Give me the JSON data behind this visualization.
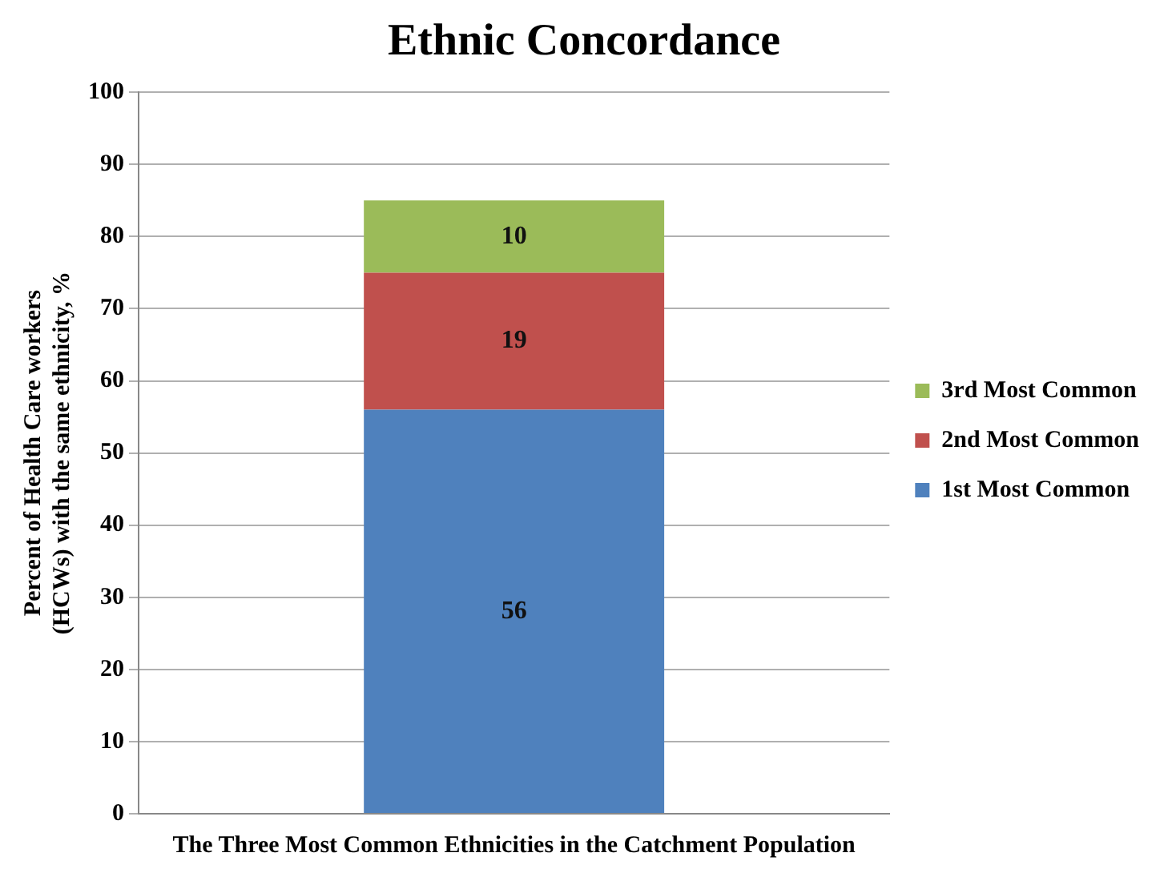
{
  "chart_data": {
    "type": "bar",
    "title": "Ethnic Concordance",
    "ylabel": "Percent of Health Care workers (HCWs) with the same ethnicity, %",
    "categories": [
      "The Three Most Common Ethnicities in the Catchment Population"
    ],
    "stacked": true,
    "series": [
      {
        "name": "1st Most Common",
        "color": "#4f81bd",
        "values": [
          56
        ]
      },
      {
        "name": "2nd Most Common",
        "color": "#c0504d",
        "values": [
          19
        ]
      },
      {
        "name": "3rd Most Common",
        "color": "#9bbb59",
        "values": [
          10
        ]
      }
    ],
    "ylim": [
      0,
      100
    ],
    "yticks": [
      0,
      10,
      20,
      30,
      40,
      50,
      60,
      70,
      80,
      90,
      100
    ],
    "grid": "y",
    "legend": "right",
    "data_labels": true
  }
}
